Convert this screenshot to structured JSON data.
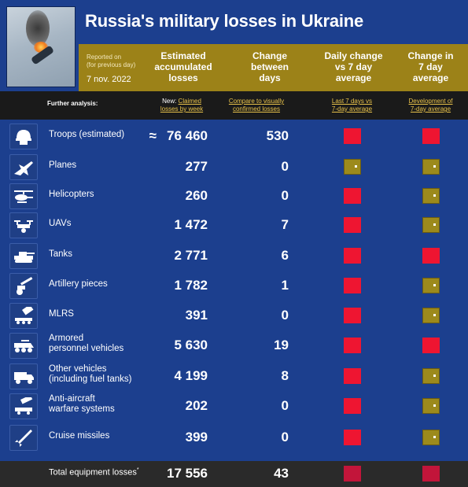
{
  "title": "Russia's military losses in Ukraine",
  "reported": {
    "line1": "Reported on",
    "line2": "(for previous day)",
    "date": "7 nov. 2022"
  },
  "columns": {
    "accumulated": [
      "Estimated",
      "accumulated",
      "losses"
    ],
    "change": [
      "Change",
      "between",
      "days"
    ],
    "daily": [
      "Daily change",
      "vs 7 day",
      "average"
    ],
    "avg": [
      "Change in",
      "7 day",
      "average"
    ]
  },
  "subheader": {
    "further": "Further analysis:",
    "new_prefix": "New: ",
    "claimed_link": "Claimed",
    "claimed_link2": "losses by week",
    "compare_link": "Compare to visually",
    "compare_link2": "confirmed losses",
    "last7_link": "Last 7 days vs",
    "last7_link2": "7-day average",
    "dev_link": "Development of",
    "dev_link2": "7-day average"
  },
  "colors": {
    "red": "#ee1531",
    "gold": "#9c8a1c",
    "blue": "#1c3f8e"
  },
  "rows": [
    {
      "icon": "helmet-icon",
      "label": "Troops (estimated)",
      "prefix": "≈",
      "value": "76 460",
      "change": "530",
      "daily": "red",
      "avg": "red"
    },
    {
      "icon": "plane-icon",
      "label": "Planes",
      "value": "277",
      "change": "0",
      "daily": "gold",
      "avg": "gold"
    },
    {
      "icon": "helicopter-icon",
      "label": "Helicopters",
      "value": "260",
      "change": "0",
      "daily": "red",
      "avg": "gold"
    },
    {
      "icon": "drone-icon",
      "label": "UAVs",
      "value": "1 472",
      "change": "7",
      "daily": "red",
      "avg": "gold"
    },
    {
      "icon": "tank-icon",
      "label": "Tanks",
      "value": "2 771",
      "change": "6",
      "daily": "red",
      "avg": "red"
    },
    {
      "icon": "artillery-icon",
      "label": "Artillery pieces",
      "value": "1 782",
      "change": "1",
      "daily": "red",
      "avg": "gold"
    },
    {
      "icon": "mlrs-icon",
      "label": "MLRS",
      "value": "391",
      "change": "0",
      "daily": "red",
      "avg": "gold"
    },
    {
      "icon": "apc-icon",
      "label": "Armored",
      "label2": "personnel vehicles",
      "value": "5 630",
      "change": "19",
      "daily": "red",
      "avg": "red"
    },
    {
      "icon": "truck-icon",
      "label": "Other vehicles",
      "label2": "(including fuel tanks)",
      "value": "4 199",
      "change": "8",
      "daily": "red",
      "avg": "gold"
    },
    {
      "icon": "antiaircraft-icon",
      "label": "Anti-aircraft",
      "label2": "warfare systems",
      "value": "202",
      "change": "0",
      "daily": "red",
      "avg": "gold"
    },
    {
      "icon": "missile-icon",
      "label": "Cruise missiles",
      "value": "399",
      "change": "0",
      "daily": "red",
      "avg": "gold"
    }
  ],
  "total": {
    "label": "Total equipment losses",
    "marker": "*",
    "value": "17 556",
    "change": "43"
  }
}
